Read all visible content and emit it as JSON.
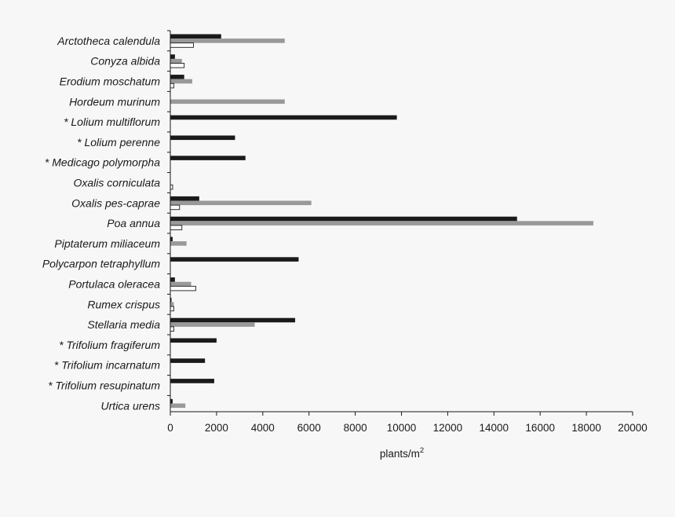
{
  "chart_data": {
    "type": "bar",
    "orientation": "horizontal",
    "categories": [
      "Arctotheca calendula",
      "Conyza albida",
      "Erodium moschatum",
      "Hordeum murinum",
      "* Lolium multiflorum",
      "* Lolium perenne",
      "* Medicago polymorpha",
      "Oxalis corniculata",
      "Oxalis pes-caprae",
      "Poa annua",
      "Piptaterum miliaceum",
      "Polycarpon tetraphyllum",
      "Portulaca oleracea",
      "Rumex crispus",
      "Stellaria media",
      "* Trifolium fragiferum",
      "* Trifolium incarnatum",
      "* Trifolium resupinatum",
      "Urtica urens"
    ],
    "series": [
      {
        "color": "#1a1a1a",
        "values": [
          2200,
          200,
          600,
          0,
          9800,
          2800,
          3250,
          0,
          1250,
          15000,
          100,
          5550,
          200,
          50,
          5400,
          2000,
          1500,
          1900,
          100
        ]
      },
      {
        "color": "#999999",
        "values": [
          4950,
          500,
          950,
          4950,
          0,
          0,
          0,
          0,
          6100,
          18300,
          700,
          0,
          900,
          150,
          3650,
          0,
          0,
          0,
          650
        ]
      },
      {
        "color": "#ffffff",
        "values": [
          1000,
          600,
          150,
          0,
          0,
          0,
          0,
          100,
          400,
          500,
          0,
          0,
          1100,
          150,
          150,
          0,
          0,
          0,
          0
        ]
      }
    ],
    "xlim": [
      0,
      20000
    ],
    "xticks": [
      "0",
      "2000",
      "4000",
      "6000",
      "8000",
      "10000",
      "12000",
      "14000",
      "16000",
      "18000",
      "20000"
    ],
    "xlabel": "plants/m",
    "xlabel_superscript": "2",
    "ylabel": "",
    "title": "",
    "legend": "none",
    "grid": false
  }
}
